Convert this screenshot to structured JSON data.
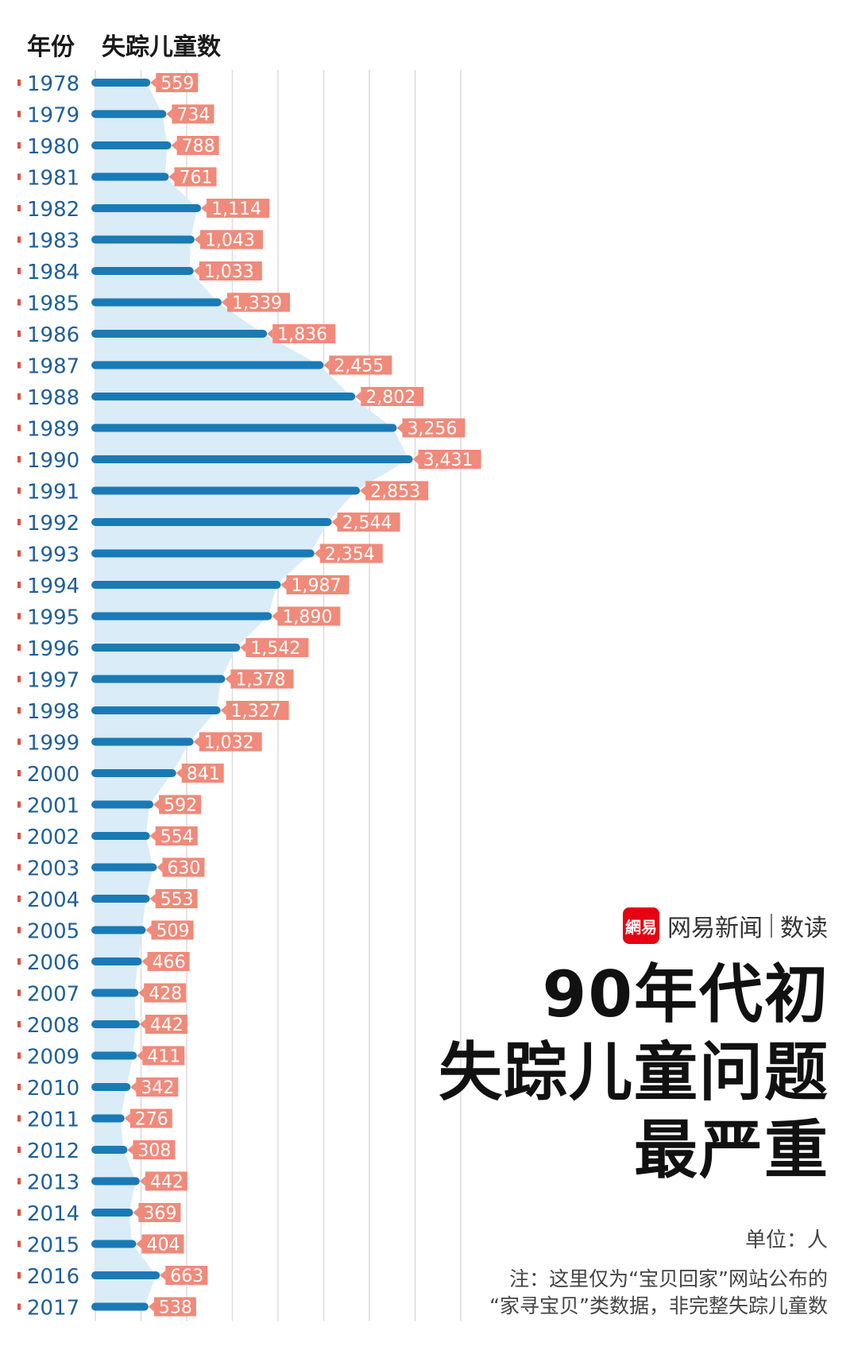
{
  "header": {
    "year_label": "年份",
    "value_label": "失踪儿童数"
  },
  "brand": {
    "logo_text": "網易",
    "name": "网易新闻",
    "section": "数读"
  },
  "headline": {
    "line1": "90年代初",
    "line2": "失踪儿童问题",
    "line3": "最严重"
  },
  "unit": "单位：人",
  "note": {
    "line1": "注：这里仅为“宝贝回家”网站公布的",
    "line2": "“家寻宝贝”类数据，非完整失踪儿童数"
  },
  "colors": {
    "bar": "#1a7ab5",
    "area": "#d9ecf8",
    "label_bg": "#f08a7a",
    "label_text": "#ffffff",
    "grid": "#dcdcdc",
    "tick": "#e05040",
    "year_text": "#1f5f99"
  },
  "chart_data": {
    "type": "bar",
    "orientation": "horizontal",
    "categories": [
      "1978",
      "1979",
      "1980",
      "1981",
      "1982",
      "1983",
      "1984",
      "1985",
      "1986",
      "1987",
      "1988",
      "1989",
      "1990",
      "1991",
      "1992",
      "1993",
      "1994",
      "1995",
      "1996",
      "1997",
      "1998",
      "1999",
      "2000",
      "2001",
      "2002",
      "2003",
      "2004",
      "2005",
      "2006",
      "2007",
      "2008",
      "2009",
      "2010",
      "2011",
      "2012",
      "2013",
      "2014",
      "2015",
      "2016",
      "2017"
    ],
    "values": [
      559,
      734,
      788,
      761,
      1114,
      1043,
      1033,
      1339,
      1836,
      2455,
      2802,
      3256,
      3431,
      2853,
      2544,
      2354,
      1987,
      1890,
      1542,
      1378,
      1327,
      1032,
      841,
      592,
      554,
      630,
      553,
      509,
      466,
      428,
      442,
      411,
      342,
      276,
      308,
      442,
      369,
      404,
      663,
      538
    ],
    "labels": [
      "559",
      "734",
      "788",
      "761",
      "1,114",
      "1,043",
      "1,033",
      "1,339",
      "1,836",
      "2,455",
      "2,802",
      "3,256",
      "3,431",
      "2,853",
      "2,544",
      "2,354",
      "1,987",
      "1,890",
      "1,542",
      "1,378",
      "1,327",
      "1,032",
      "841",
      "592",
      "554",
      "630",
      "553",
      "509",
      "466",
      "428",
      "442",
      "411",
      "342",
      "276",
      "308",
      "442",
      "369",
      "404",
      "663",
      "538"
    ],
    "xlim": [
      0,
      4000
    ],
    "grid": true
  }
}
